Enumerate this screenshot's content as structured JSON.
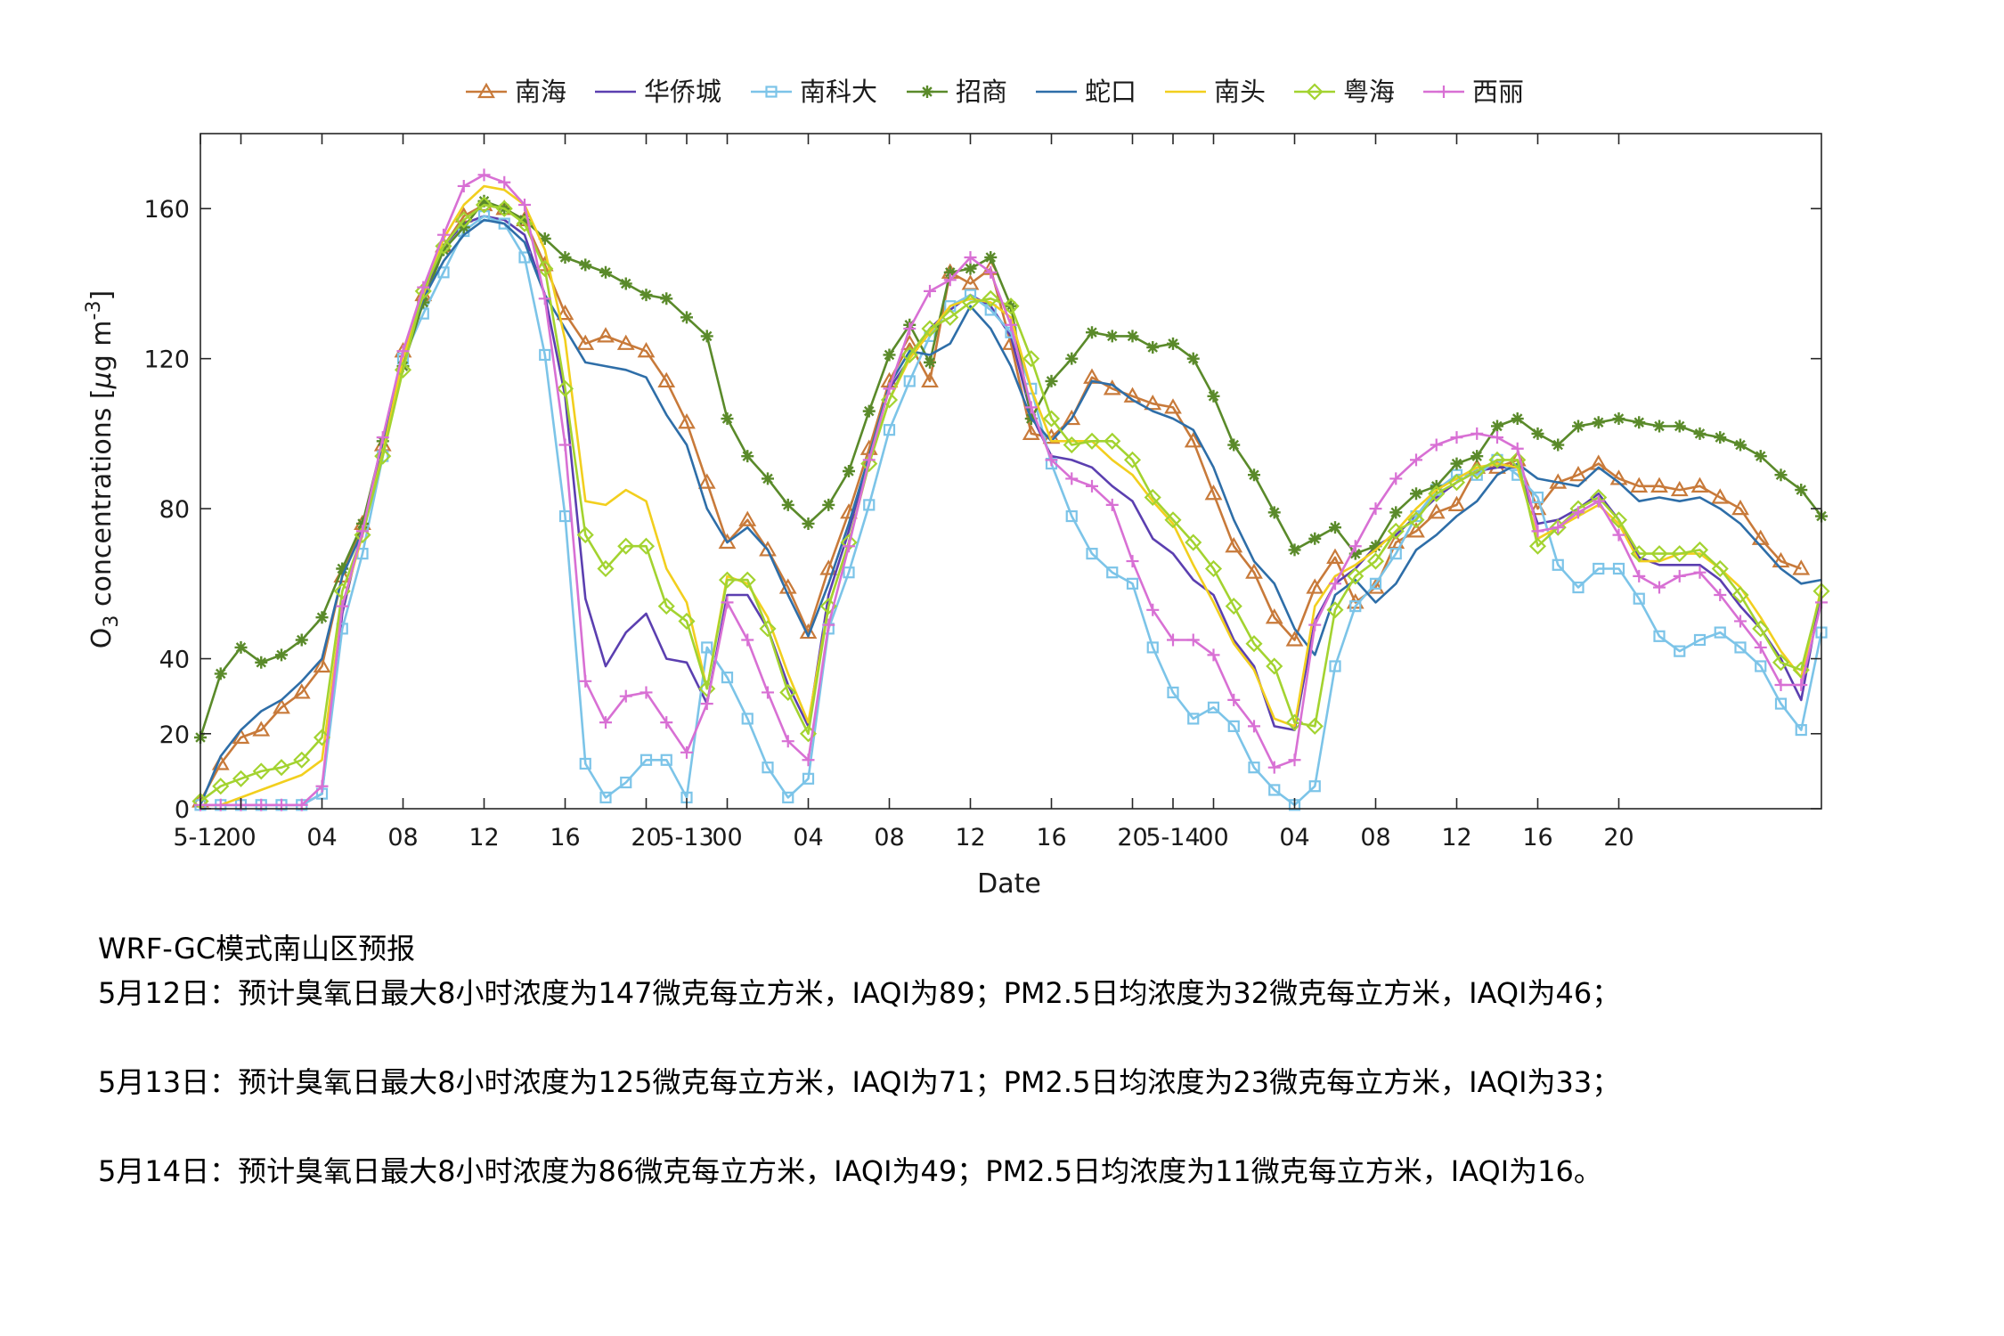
{
  "chart_data": {
    "type": "line",
    "title": "",
    "xlabel": "Date",
    "ylabel_parts": {
      "main": "O",
      "sub": "3",
      "mid": " concentrations [",
      "mu": "μ",
      "g": "g m",
      "sup": "-3",
      "end": "]"
    },
    "ylim": [
      0,
      180
    ],
    "yticks": [
      0,
      20,
      40,
      80,
      120,
      160
    ],
    "x_ticks": [
      {
        "t": 0,
        "label": "5-12"
      },
      {
        "t": 2,
        "label": "00"
      },
      {
        "t": 6,
        "label": "04"
      },
      {
        "t": 10,
        "label": "08"
      },
      {
        "t": 14,
        "label": "12"
      },
      {
        "t": 18,
        "label": "16"
      },
      {
        "t": 22,
        "label": "20"
      },
      {
        "t": 24,
        "label": "5-13"
      },
      {
        "t": 26,
        "label": "00"
      },
      {
        "t": 30,
        "label": "04"
      },
      {
        "t": 34,
        "label": "08"
      },
      {
        "t": 38,
        "label": "12"
      },
      {
        "t": 42,
        "label": "16"
      },
      {
        "t": 46,
        "label": "20"
      },
      {
        "t": 48,
        "label": "5-14"
      },
      {
        "t": 50,
        "label": "00"
      },
      {
        "t": 54,
        "label": "04"
      },
      {
        "t": 58,
        "label": "08"
      },
      {
        "t": 62,
        "label": "12"
      },
      {
        "t": 66,
        "label": "16"
      },
      {
        "t": 70,
        "label": "20"
      }
    ],
    "x_range": [
      0,
      80
    ],
    "legend_position": "top",
    "series": [
      {
        "name": "南海",
        "color": "#c87a3a",
        "marker": "triangle",
        "values": [
          2,
          12,
          19,
          21,
          27,
          31,
          38,
          62,
          76,
          97,
          122,
          137,
          150,
          158,
          161,
          160,
          157,
          145,
          132,
          124,
          126,
          124,
          122,
          114,
          103,
          87,
          71,
          77,
          69,
          59,
          47,
          64,
          79,
          96,
          114,
          124,
          114,
          143,
          140,
          144,
          124,
          100,
          99,
          104,
          115,
          112,
          110,
          108,
          107,
          98,
          84,
          70,
          63,
          51,
          45,
          59,
          67,
          55,
          59,
          71,
          74,
          79,
          81,
          91,
          91,
          93,
          80,
          87,
          89,
          92,
          88,
          86,
          86,
          85,
          86,
          83,
          80,
          72,
          66,
          64
        ]
      },
      {
        "name": "华侨城",
        "color": "#5b3fb0",
        "marker": "none",
        "values": [
          1,
          1,
          1,
          1,
          1,
          1,
          4,
          52,
          75,
          97,
          122,
          137,
          150,
          156,
          158,
          157,
          153,
          137,
          110,
          56,
          38,
          47,
          52,
          40,
          39,
          28,
          57,
          57,
          48,
          33,
          22,
          57,
          74,
          94,
          112,
          120,
          128,
          133,
          137,
          134,
          126,
          105,
          94,
          93,
          91,
          86,
          82,
          72,
          68,
          61,
          57,
          45,
          38,
          22,
          21,
          50,
          60,
          64,
          70,
          73,
          78,
          83,
          87,
          90,
          91,
          91,
          76,
          77,
          80,
          84,
          77,
          67,
          65,
          65,
          65,
          61,
          54,
          48,
          40,
          29,
          58
        ]
      },
      {
        "name": "南科大",
        "color": "#7cc4e8",
        "marker": "square",
        "values": [
          1,
          1,
          1,
          1,
          1,
          1,
          4,
          48,
          68,
          94,
          120,
          132,
          143,
          154,
          158,
          156,
          147,
          121,
          78,
          12,
          3,
          7,
          13,
          13,
          3,
          43,
          35,
          24,
          11,
          3,
          8,
          48,
          63,
          81,
          101,
          114,
          126,
          134,
          137,
          133,
          127,
          112,
          92,
          78,
          68,
          63,
          60,
          43,
          31,
          24,
          27,
          22,
          11,
          5,
          1,
          6,
          38,
          54,
          60,
          68,
          78,
          85,
          89,
          89,
          93,
          89,
          83,
          65,
          59,
          64,
          64,
          56,
          46,
          42,
          45,
          47,
          43,
          38,
          28,
          21,
          47
        ]
      },
      {
        "name": "招商",
        "color": "#5a8a2a",
        "marker": "star",
        "values": [
          19,
          36,
          43,
          39,
          41,
          45,
          51,
          64,
          76,
          98,
          118,
          135,
          149,
          155,
          162,
          160,
          157,
          152,
          147,
          145,
          143,
          140,
          137,
          136,
          131,
          126,
          104,
          94,
          88,
          81,
          76,
          81,
          90,
          106,
          121,
          129,
          119,
          143,
          144,
          147,
          134,
          104,
          114,
          120,
          127,
          126,
          126,
          123,
          124,
          120,
          110,
          97,
          89,
          79,
          69,
          72,
          75,
          68,
          70,
          79,
          84,
          86,
          92,
          94,
          102,
          104,
          100,
          97,
          102,
          103,
          104,
          103,
          102,
          102,
          100,
          99,
          97,
          94,
          89,
          85,
          78
        ]
      },
      {
        "name": "蛇口",
        "color": "#2e6ea8",
        "marker": "none",
        "values": [
          1,
          14,
          21,
          26,
          29,
          34,
          40,
          62,
          74,
          96,
          121,
          136,
          146,
          153,
          157,
          156,
          151,
          137,
          128,
          119,
          118,
          117,
          115,
          105,
          97,
          80,
          71,
          75,
          69,
          57,
          46,
          60,
          76,
          94,
          113,
          122,
          121,
          124,
          134,
          128,
          118,
          104,
          98,
          104,
          114,
          113,
          109,
          106,
          104,
          101,
          91,
          77,
          66,
          60,
          48,
          41,
          57,
          61,
          55,
          60,
          69,
          73,
          78,
          82,
          89,
          92,
          88,
          87,
          86,
          91,
          87,
          82,
          83,
          82,
          83,
          80,
          76,
          70,
          64,
          60,
          61
        ]
      },
      {
        "name": "南头",
        "color": "#f2cf1e",
        "marker": "none",
        "values": [
          1,
          1,
          3,
          5,
          7,
          9,
          13,
          54,
          73,
          95,
          120,
          137,
          152,
          161,
          166,
          165,
          161,
          149,
          125,
          82,
          81,
          85,
          82,
          64,
          55,
          32,
          62,
          60,
          51,
          36,
          23,
          54,
          71,
          92,
          109,
          120,
          127,
          134,
          136,
          135,
          131,
          112,
          98,
          98,
          98,
          93,
          89,
          82,
          76,
          65,
          55,
          44,
          37,
          24,
          22,
          54,
          62,
          65,
          69,
          74,
          80,
          85,
          88,
          91,
          92,
          91,
          72,
          75,
          78,
          81,
          76,
          66,
          66,
          68,
          68,
          64,
          59,
          51,
          42,
          35,
          59
        ]
      },
      {
        "name": "粤海",
        "color": "#a3d330",
        "marker": "diamond",
        "values": [
          2,
          6,
          8,
          10,
          11,
          13,
          19,
          58,
          73,
          94,
          117,
          138,
          150,
          157,
          161,
          160,
          156,
          144,
          112,
          73,
          64,
          70,
          70,
          54,
          50,
          32,
          61,
          61,
          48,
          31,
          20,
          54,
          71,
          92,
          109,
          121,
          128,
          131,
          135,
          136,
          134,
          120,
          104,
          97,
          98,
          98,
          93,
          83,
          77,
          71,
          64,
          54,
          44,
          38,
          23,
          22,
          53,
          62,
          66,
          74,
          77,
          84,
          87,
          90,
          93,
          93,
          70,
          75,
          80,
          83,
          77,
          68,
          68,
          68,
          69,
          64,
          57,
          48,
          39,
          37,
          58
        ]
      },
      {
        "name": "西丽",
        "color": "#d870d4",
        "marker": "plus",
        "values": [
          1,
          1,
          1,
          1,
          1,
          1,
          6,
          54,
          74,
          99,
          122,
          139,
          153,
          166,
          169,
          167,
          161,
          136,
          97,
          34,
          23,
          30,
          31,
          23,
          15,
          28,
          55,
          45,
          31,
          18,
          13,
          49,
          70,
          93,
          112,
          128,
          138,
          141,
          147,
          143,
          129,
          107,
          93,
          88,
          86,
          81,
          66,
          53,
          45,
          45,
          41,
          29,
          22,
          11,
          13,
          49,
          60,
          70,
          80,
          88,
          93,
          97,
          99,
          100,
          99,
          96,
          74,
          75,
          79,
          82,
          73,
          62,
          59,
          62,
          63,
          57,
          50,
          43,
          33,
          33,
          55
        ]
      }
    ]
  },
  "notes": {
    "title": "WRF-GC模式南山区预报",
    "lines": [
      "5月12日：预计臭氧日最大8小时浓度为147微克每立方米，IAQI为89；PM2.5日均浓度为32微克每立方米，IAQI为46；",
      "5月13日：预计臭氧日最大8小时浓度为125微克每立方米，IAQI为71；PM2.5日均浓度为23微克每立方米，IAQI为33；",
      "5月14日：预计臭氧日最大8小时浓度为86微克每立方米，IAQI为49；PM2.5日均浓度为11微克每立方米，IAQI为16。"
    ]
  }
}
